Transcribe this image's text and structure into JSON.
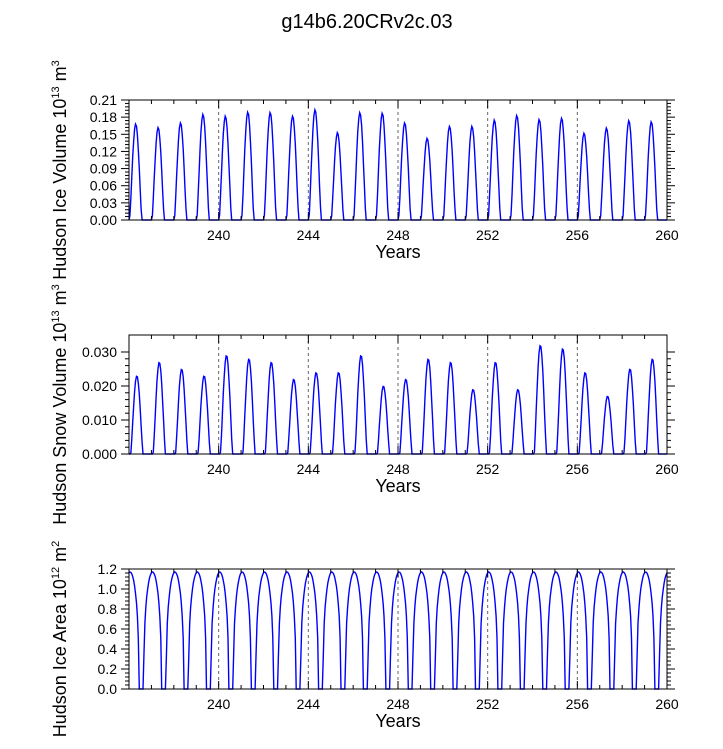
{
  "chart_data": [
    {
      "type": "line",
      "title": "g14b6.20CRv2c.03",
      "ylabel": {
        "main": "Hudson Ice Volume 10",
        "exp": "13",
        "unit": " m",
        "unit_exp": "3"
      },
      "xlabel": "Years",
      "xlim": [
        236,
        260
      ],
      "ylim": [
        0,
        0.21
      ],
      "xticks": [
        240,
        244,
        248,
        252,
        256,
        260
      ],
      "xtick_labels": [
        "240",
        "244",
        "248",
        "252",
        "256",
        "260"
      ],
      "yticks": [
        0,
        0.03,
        0.06,
        0.09,
        0.12,
        0.15,
        0.18,
        0.21
      ],
      "ytick_labels": [
        "0.00",
        "0.03",
        "0.06",
        "0.09",
        "0.12",
        "0.15",
        "0.18",
        "0.21"
      ],
      "reference_lines_x": [
        240,
        244,
        248,
        252,
        256
      ],
      "color": "#0000ff",
      "cycle": {
        "start": 236,
        "period": 1,
        "phase_peak": 0.3,
        "width": 0.55,
        "baseline_fraction": 0.14
      },
      "annual_peaks": [
        0.168,
        0.162,
        0.17,
        0.185,
        0.182,
        0.189,
        0.188,
        0.182,
        0.193,
        0.153,
        0.188,
        0.187,
        0.17,
        0.143,
        0.164,
        0.164,
        0.175,
        0.183,
        0.176,
        0.178,
        0.152,
        0.161,
        0.174,
        0.172
      ]
    },
    {
      "type": "line",
      "ylabel": {
        "main": "Hudson Snow Volume 10",
        "exp": "13",
        "unit": " m",
        "unit_exp": "3"
      },
      "xlabel": "Years",
      "xlim": [
        236,
        260
      ],
      "ylim": [
        0,
        0.035
      ],
      "xticks": [
        240,
        244,
        248,
        252,
        256,
        260
      ],
      "xtick_labels": [
        "240",
        "244",
        "248",
        "252",
        "256",
        "260"
      ],
      "yticks": [
        0,
        0.01,
        0.02,
        0.03
      ],
      "ytick_labels": [
        "0.000",
        "0.010",
        "0.020",
        "0.030"
      ],
      "reference_lines_x": [
        240,
        244,
        248,
        252,
        256
      ],
      "color": "#0000ff",
      "cycle": {
        "start": 236,
        "period": 1,
        "phase_peak": 0.35,
        "width": 0.55,
        "baseline_fraction": 0.15
      },
      "annual_peaks": [
        0.023,
        0.027,
        0.025,
        0.023,
        0.029,
        0.028,
        0.027,
        0.022,
        0.024,
        0.024,
        0.029,
        0.02,
        0.022,
        0.028,
        0.027,
        0.019,
        0.027,
        0.019,
        0.032,
        0.031,
        0.024,
        0.017,
        0.025,
        0.028
      ]
    },
    {
      "type": "line",
      "ylabel": {
        "main": "Hudson Ice Area 10",
        "exp": "12",
        "unit": " m",
        "unit_exp": "2"
      },
      "xlabel": "Years",
      "xlim": [
        236,
        260
      ],
      "ylim": [
        0,
        1.2
      ],
      "xticks": [
        240,
        244,
        248,
        252,
        256,
        260
      ],
      "xtick_labels": [
        "240",
        "244",
        "248",
        "252",
        "256",
        "260"
      ],
      "yticks": [
        0,
        0.2,
        0.4,
        0.6,
        0.8,
        1.0,
        1.2
      ],
      "ytick_labels": [
        "0.0",
        "0.2",
        "0.4",
        "0.6",
        "0.8",
        "1.0",
        "1.2"
      ],
      "reference_lines_x": [
        240,
        244,
        248,
        252,
        256
      ],
      "color": "#0000ff",
      "cycle": {
        "start": 236,
        "period": 1,
        "phase_peak": 0.05,
        "width": 0.78,
        "baseline_fraction": 0.0
      },
      "annual_peaks": [
        1.17,
        1.17,
        1.17,
        1.17,
        1.17,
        1.17,
        1.17,
        1.17,
        1.17,
        1.17,
        1.17,
        1.17,
        1.17,
        1.17,
        1.17,
        1.17,
        1.17,
        1.17,
        1.17,
        1.17,
        1.17,
        1.17,
        1.17,
        1.17,
        1.17
      ]
    }
  ]
}
